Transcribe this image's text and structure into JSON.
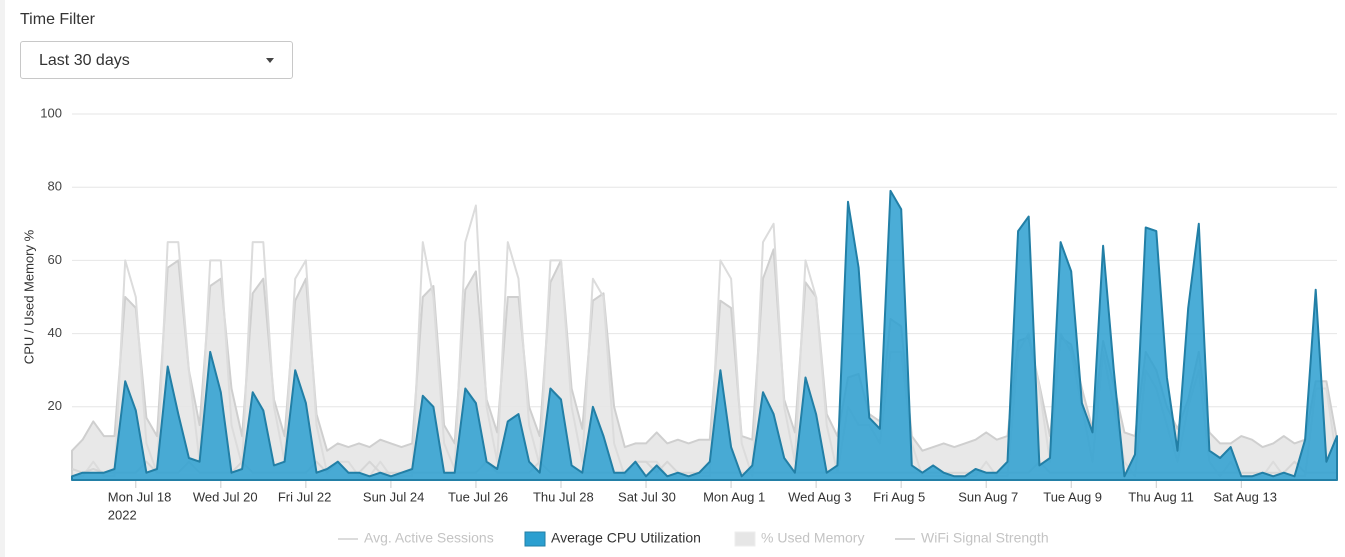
{
  "filter_label": "Time Filter",
  "filter_value": "Last 30 days",
  "chart_data": {
    "type": "area",
    "y_label": "CPU / Used Memory %",
    "ylim": [
      0,
      100
    ],
    "yticks": [
      20,
      40,
      60,
      80,
      100
    ],
    "grid": true,
    "year_label": "2022",
    "categories": [
      null,
      null,
      null,
      null,
      null,
      null,
      "Mon Jul 18",
      null,
      null,
      null,
      null,
      null,
      null,
      null,
      "Wed Jul 20",
      null,
      null,
      null,
      null,
      null,
      null,
      null,
      "Fri Jul 22",
      null,
      null,
      null,
      null,
      null,
      null,
      null,
      "Sun Jul 24",
      null,
      null,
      null,
      null,
      null,
      null,
      null,
      "Tue Jul 26",
      null,
      null,
      null,
      null,
      null,
      null,
      null,
      "Thu Jul 28",
      null,
      null,
      null,
      null,
      null,
      null,
      null,
      "Sat Jul 30",
      null,
      null,
      null,
      null,
      null,
      null,
      null,
      "Mon Aug 1",
      null,
      null,
      null,
      null,
      null,
      null,
      null,
      "Wed Aug 3",
      null,
      null,
      null,
      null,
      null,
      null,
      null,
      "Fri Aug 5",
      null,
      null,
      null,
      null,
      null,
      null,
      null,
      "Sun Aug 7",
      null,
      null,
      null,
      null,
      null,
      null,
      null,
      "Tue Aug 9",
      null,
      null,
      null,
      null,
      null,
      null,
      null,
      "Thu Aug 11",
      null,
      null,
      null,
      null,
      null,
      null,
      null,
      "Sat Aug 13",
      null,
      null,
      null,
      null,
      null,
      null,
      null,
      null,
      null
    ],
    "legend": "bottom",
    "series": [
      {
        "name": "Avg. Active Sessions",
        "kind": "line",
        "color": "#dcdcdc",
        "values": [
          1,
          1,
          5,
          1,
          1,
          60,
          50,
          10,
          2,
          65,
          65,
          30,
          5,
          60,
          60,
          15,
          4,
          65,
          65,
          20,
          5,
          55,
          60,
          15,
          2,
          5,
          5,
          1,
          1,
          5,
          1,
          1,
          1,
          65,
          50,
          10,
          3,
          65,
          75,
          20,
          5,
          65,
          55,
          15,
          4,
          60,
          60,
          20,
          5,
          55,
          50,
          10,
          1,
          5,
          5,
          5,
          1,
          1,
          1,
          1,
          1,
          60,
          55,
          10,
          1,
          65,
          70,
          20,
          5,
          60,
          50,
          15,
          2,
          20,
          15,
          15,
          10,
          35,
          35,
          10,
          1,
          1,
          1,
          1,
          1,
          1,
          5,
          1,
          1,
          35,
          40,
          25,
          5,
          40,
          35,
          20,
          5,
          35,
          20,
          5,
          1,
          30,
          25,
          15,
          5,
          20,
          30,
          5,
          1,
          5,
          1,
          1,
          1,
          5,
          1,
          1,
          1,
          25,
          25,
          5
        ]
      },
      {
        "name": "Average CPU Utilization",
        "kind": "area",
        "color": "#2b9fd0",
        "values": [
          1,
          2,
          2,
          2,
          3,
          27,
          19,
          2,
          3,
          31,
          18,
          6,
          5,
          35,
          24,
          2,
          3,
          24,
          19,
          4,
          5,
          30,
          21,
          2,
          3,
          5,
          2,
          2,
          1,
          2,
          1,
          2,
          3,
          23,
          20,
          2,
          2,
          25,
          21,
          5,
          3,
          16,
          18,
          5,
          2,
          25,
          22,
          4,
          2,
          20,
          12,
          2,
          2,
          5,
          1,
          4,
          1,
          2,
          1,
          2,
          5,
          30,
          9,
          1,
          4,
          24,
          18,
          6,
          2,
          28,
          18,
          2,
          4,
          76,
          58,
          17,
          14,
          79,
          74,
          4,
          2,
          4,
          2,
          1,
          1,
          3,
          2,
          2,
          5,
          68,
          72,
          4,
          6,
          65,
          57,
          21,
          13,
          64,
          30,
          1,
          7,
          69,
          68,
          28,
          8,
          47,
          70,
          8,
          6,
          9,
          1,
          1,
          2,
          1,
          2,
          1,
          11,
          52,
          5,
          12
        ]
      },
      {
        "name": "% Used Memory",
        "kind": "area",
        "color": "#e6e6e6",
        "values": [
          8,
          11,
          16,
          12,
          12,
          50,
          47,
          17,
          12,
          58,
          60,
          30,
          15,
          53,
          55,
          25,
          12,
          51,
          55,
          22,
          12,
          49,
          55,
          18,
          8,
          10,
          9,
          10,
          9,
          11,
          10,
          9,
          10,
          50,
          53,
          15,
          10,
          52,
          57,
          22,
          13,
          50,
          50,
          20,
          12,
          54,
          60,
          25,
          14,
          49,
          51,
          20,
          9,
          10,
          10,
          13,
          10,
          11,
          10,
          11,
          11,
          49,
          47,
          12,
          11,
          55,
          63,
          22,
          13,
          54,
          50,
          18,
          12,
          28,
          29,
          18,
          16,
          44,
          42,
          12,
          8,
          9,
          10,
          9,
          10,
          11,
          13,
          11,
          12,
          38,
          39,
          26,
          12,
          39,
          37,
          25,
          14,
          38,
          26,
          13,
          12,
          35,
          30,
          20,
          14,
          22,
          35,
          13,
          10,
          10,
          12,
          11,
          9,
          10,
          12,
          10,
          11,
          27,
          27,
          11
        ]
      },
      {
        "name": "WiFi Signal Strength",
        "kind": "line",
        "color": "#d6d6d6",
        "values": [
          3,
          2,
          3,
          2,
          2,
          2,
          2,
          5,
          2,
          2,
          2,
          5,
          2,
          2,
          2,
          2,
          5,
          2,
          2,
          2,
          2,
          2,
          2,
          5,
          2,
          5,
          2,
          2,
          5,
          2,
          2,
          2,
          2,
          2,
          2,
          2,
          2,
          2,
          2,
          5,
          2,
          2,
          2,
          2,
          5,
          2,
          2,
          2,
          2,
          2,
          2,
          2,
          2,
          5,
          5,
          2,
          5,
          2,
          2,
          2,
          2,
          2,
          2,
          2,
          2,
          2,
          2,
          2,
          2,
          2,
          2,
          2,
          2,
          2,
          2,
          2,
          2,
          2,
          2,
          2,
          2,
          2,
          2,
          2,
          2,
          2,
          2,
          2,
          2,
          2,
          2,
          5,
          2,
          2,
          2,
          2,
          2,
          2,
          2,
          2,
          2,
          2,
          2,
          2,
          2,
          2,
          2,
          2,
          2,
          2,
          2,
          2,
          2,
          2,
          2,
          5,
          2,
          2,
          2,
          2
        ]
      }
    ]
  }
}
